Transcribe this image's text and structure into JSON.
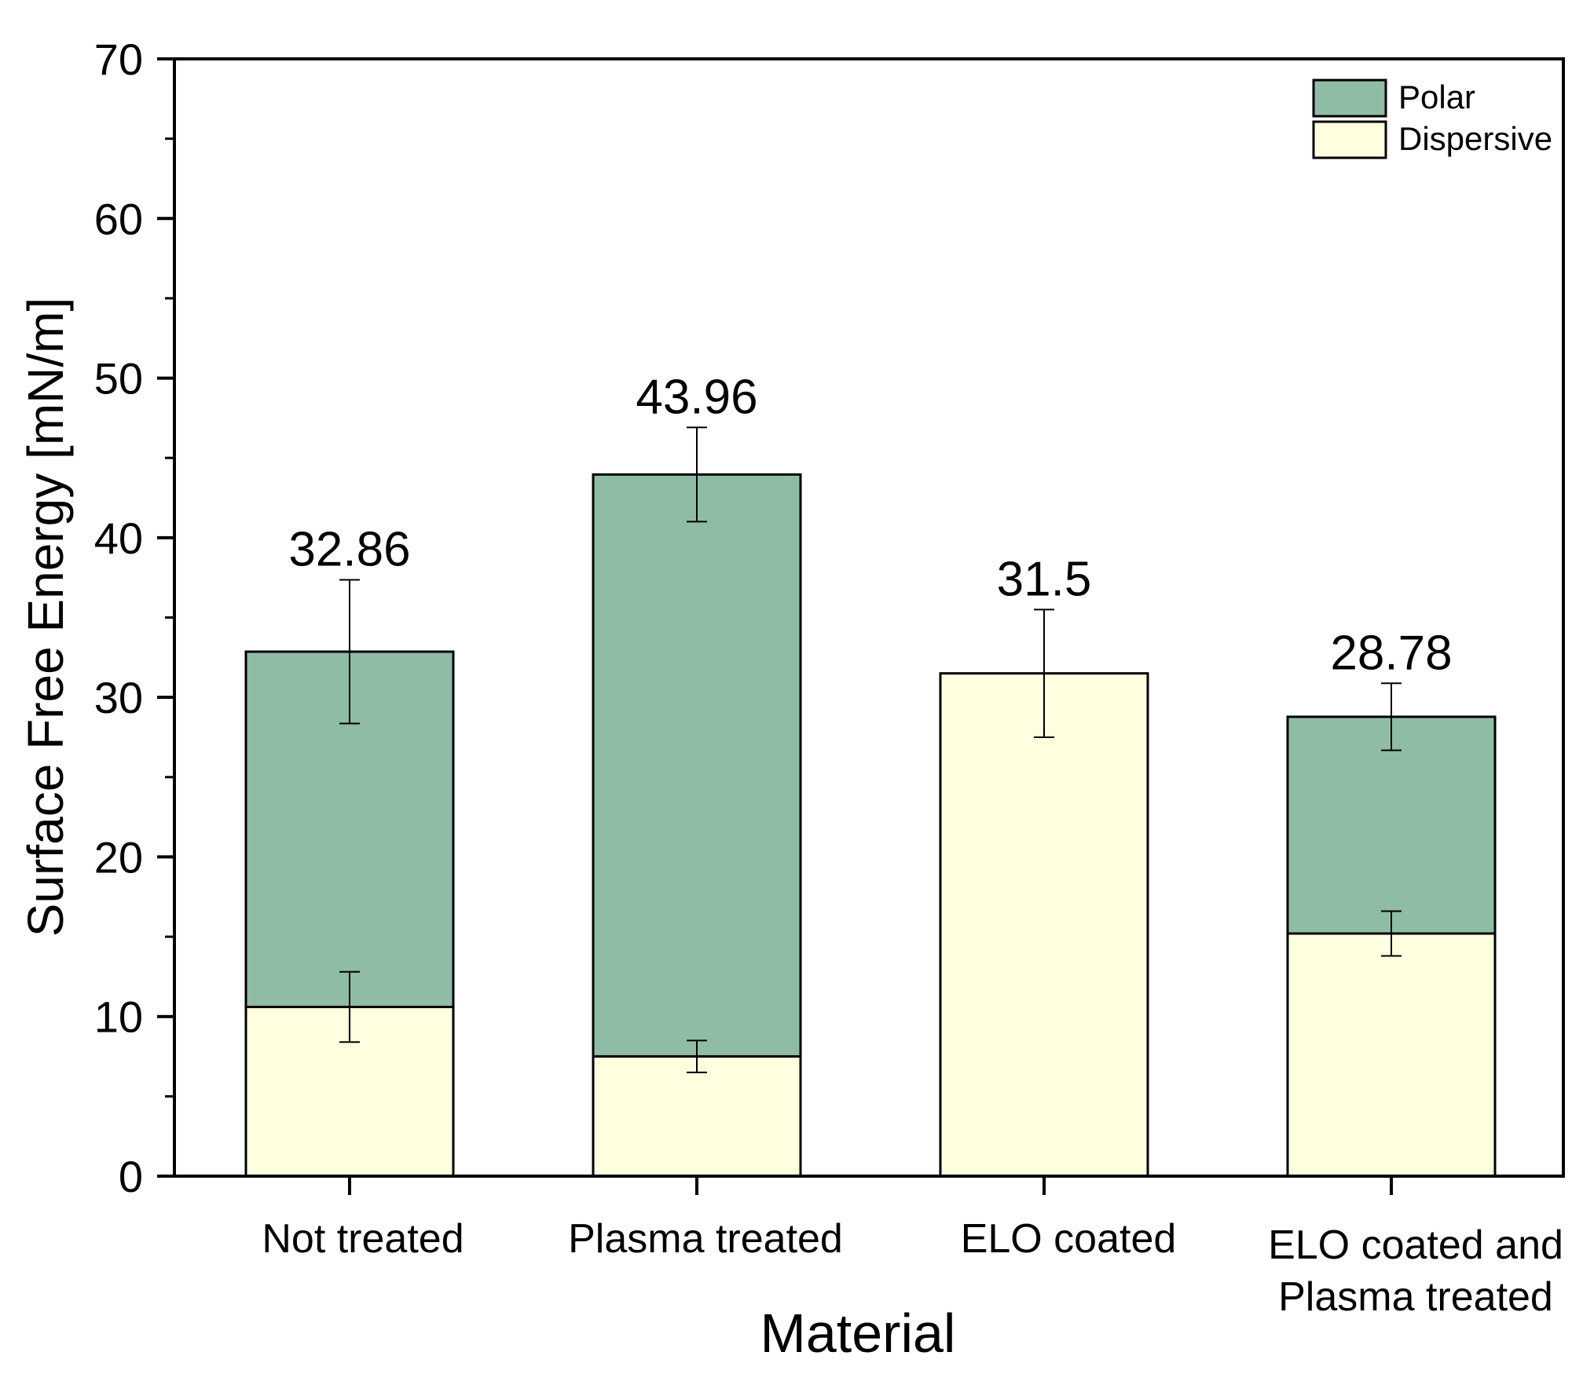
{
  "chart_data": {
    "type": "bar",
    "stacked": true,
    "title": "",
    "xlabel": "Material",
    "ylabel": "Surface Free Energy [mN/m]",
    "ylim": [
      0,
      70
    ],
    "yticks": [
      0,
      10,
      20,
      30,
      40,
      50,
      60,
      70
    ],
    "grid": false,
    "legend_position": "top-right",
    "categories": [
      [
        "Not treated"
      ],
      [
        "Plasma treated"
      ],
      [
        "ELO coated"
      ],
      [
        "ELO coated and",
        "Plasma treated"
      ]
    ],
    "series": [
      {
        "name": "Dispersive",
        "color": "#FFFEDE",
        "values": [
          10.6,
          7.5,
          31.5,
          15.2
        ],
        "errors": [
          2.2,
          1.0,
          4.0,
          1.4
        ]
      },
      {
        "name": "Polar",
        "color": "#8FBCA4",
        "values": [
          22.26,
          36.46,
          0,
          13.58
        ],
        "errors": [
          4.5,
          2.95,
          0,
          2.1
        ]
      }
    ],
    "totals": [
      32.86,
      43.96,
      31.5,
      28.78
    ],
    "total_labels": [
      "32.86",
      "43.96",
      "31.5",
      "28.78"
    ],
    "legend_entries": [
      "Polar",
      "Dispersive"
    ]
  }
}
